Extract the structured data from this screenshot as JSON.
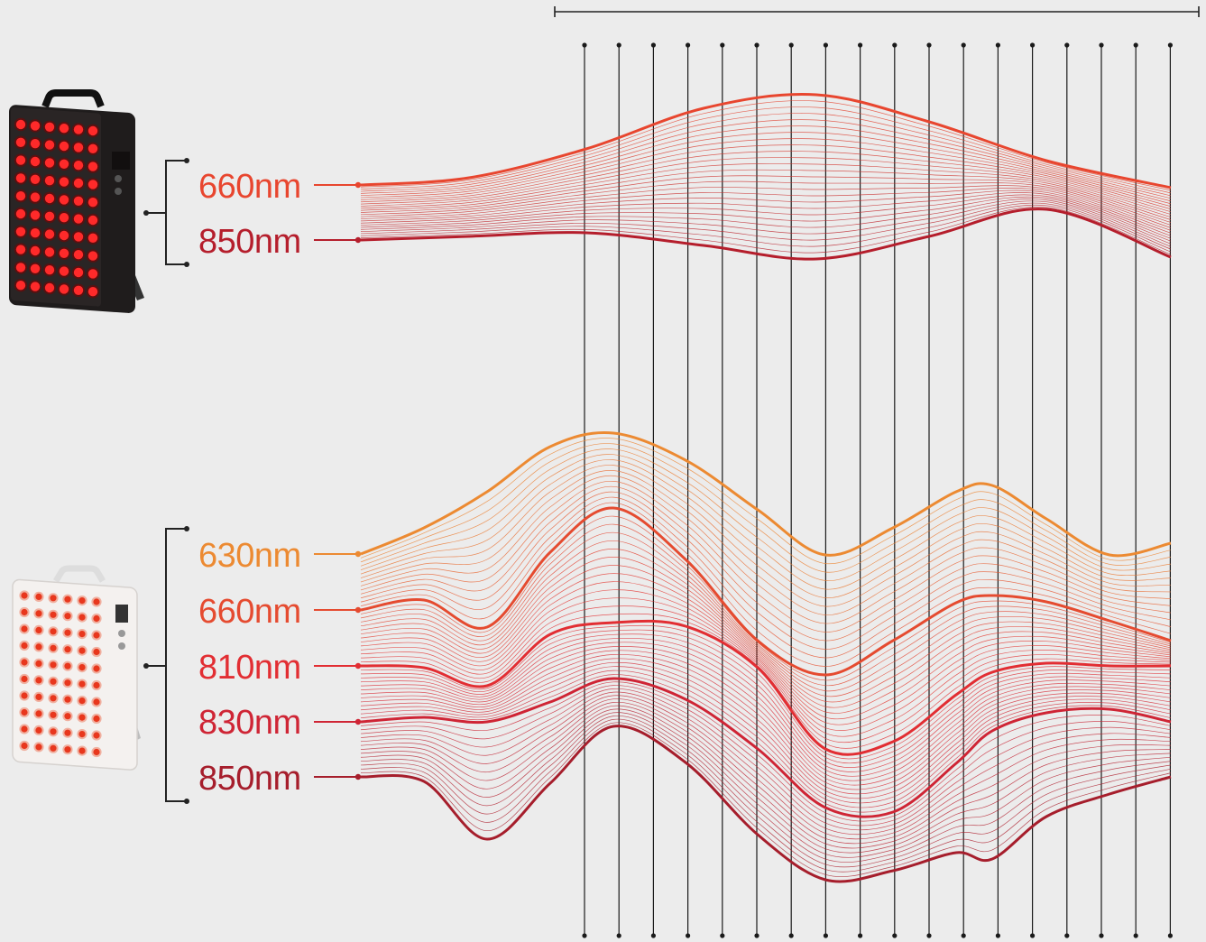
{
  "devices": [
    {
      "name": "panel-black",
      "body_color": "#1f1c1c",
      "led_color": "#ff2a2a",
      "wavelengths": [
        {
          "label": "660nm",
          "color": "#e8462f"
        },
        {
          "label": "850nm",
          "color": "#b51e2c"
        }
      ]
    },
    {
      "name": "panel-white",
      "body_color": "#f4f1ef",
      "led_color": "#e8371d",
      "wavelengths": [
        {
          "label": "630nm",
          "color": "#ec8a32"
        },
        {
          "label": "660nm",
          "color": "#e54b30"
        },
        {
          "label": "810nm",
          "color": "#e22e33"
        },
        {
          "label": "830nm",
          "color": "#cf2535"
        },
        {
          "label": "850nm",
          "color": "#a61e2c"
        }
      ]
    }
  ],
  "colors": {
    "background": "#ececec",
    "line": "#222222"
  }
}
